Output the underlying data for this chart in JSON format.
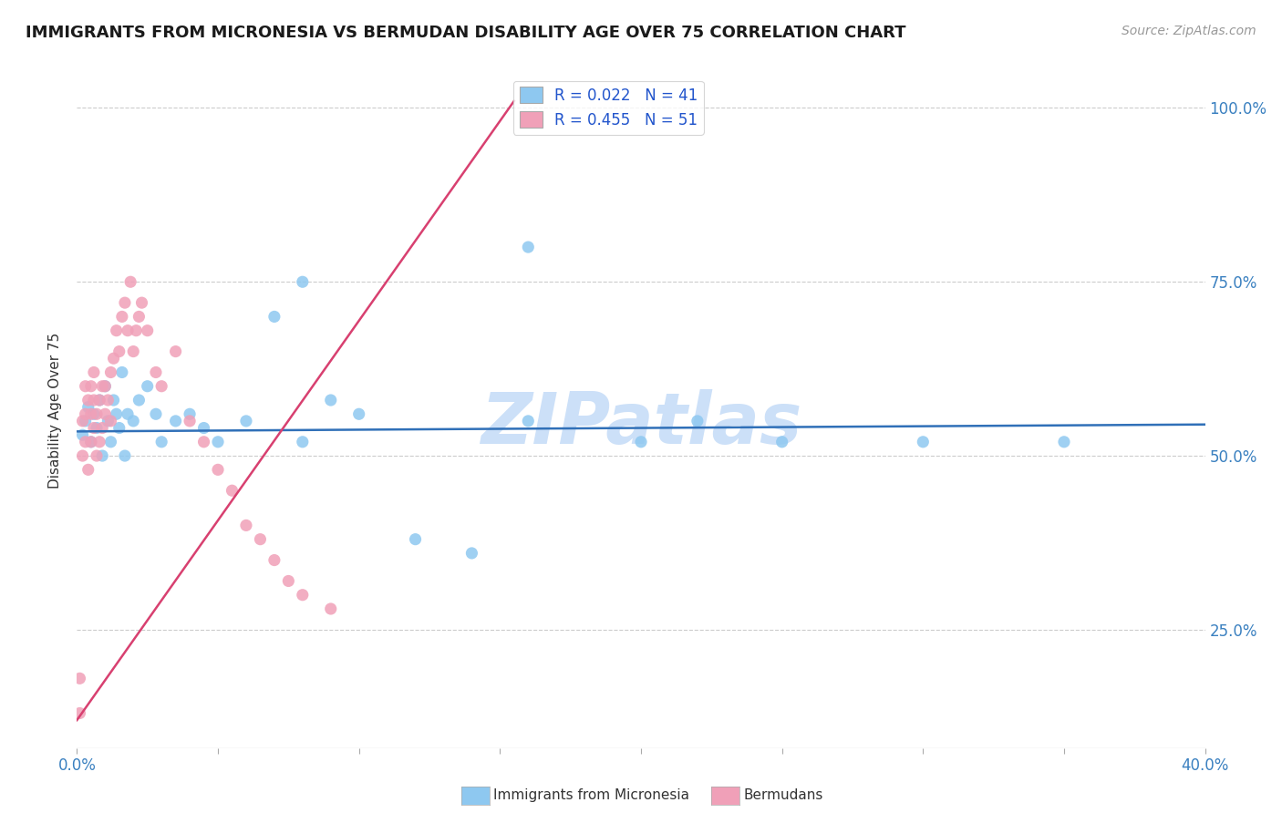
{
  "title": "IMMIGRANTS FROM MICRONESIA VS BERMUDAN DISABILITY AGE OVER 75 CORRELATION CHART",
  "source_text": "Source: ZipAtlas.com",
  "ylabel": "Disability Age Over 75",
  "xlim": [
    0.0,
    0.4
  ],
  "ylim": [
    0.08,
    1.05
  ],
  "xticks": [
    0.0,
    0.05,
    0.1,
    0.15,
    0.2,
    0.25,
    0.3,
    0.35,
    0.4
  ],
  "xticklabels": [
    "0.0%",
    "",
    "",
    "",
    "",
    "",
    "",
    "",
    "40.0%"
  ],
  "yticks": [
    0.25,
    0.5,
    0.75,
    1.0
  ],
  "yticklabels": [
    "25.0%",
    "50.0%",
    "75.0%",
    "100.0%"
  ],
  "blue_color": "#8ec8f0",
  "pink_color": "#f0a0b8",
  "blue_line_color": "#3070b8",
  "pink_line_color": "#d84070",
  "watermark": "ZIPatlas",
  "watermark_color": "#cce0f8",
  "blue_scatter_x": [
    0.002,
    0.003,
    0.004,
    0.005,
    0.006,
    0.007,
    0.008,
    0.009,
    0.01,
    0.011,
    0.012,
    0.013,
    0.014,
    0.015,
    0.016,
    0.017,
    0.018,
    0.02,
    0.022,
    0.025,
    0.028,
    0.03,
    0.035,
    0.04,
    0.045,
    0.05,
    0.06,
    0.07,
    0.08,
    0.09,
    0.1,
    0.12,
    0.14,
    0.16,
    0.2,
    0.22,
    0.25,
    0.3,
    0.35,
    0.16,
    0.08
  ],
  "blue_scatter_y": [
    0.53,
    0.55,
    0.57,
    0.52,
    0.56,
    0.54,
    0.58,
    0.5,
    0.6,
    0.55,
    0.52,
    0.58,
    0.56,
    0.54,
    0.62,
    0.5,
    0.56,
    0.55,
    0.58,
    0.6,
    0.56,
    0.52,
    0.55,
    0.56,
    0.54,
    0.52,
    0.55,
    0.7,
    0.75,
    0.58,
    0.56,
    0.38,
    0.36,
    0.55,
    0.52,
    0.55,
    0.52,
    0.52,
    0.52,
    0.8,
    0.52
  ],
  "pink_scatter_x": [
    0.001,
    0.001,
    0.002,
    0.002,
    0.003,
    0.003,
    0.003,
    0.004,
    0.004,
    0.005,
    0.005,
    0.005,
    0.006,
    0.006,
    0.006,
    0.007,
    0.007,
    0.008,
    0.008,
    0.009,
    0.009,
    0.01,
    0.01,
    0.011,
    0.012,
    0.012,
    0.013,
    0.014,
    0.015,
    0.016,
    0.017,
    0.018,
    0.019,
    0.02,
    0.021,
    0.022,
    0.023,
    0.025,
    0.028,
    0.03,
    0.035,
    0.04,
    0.045,
    0.05,
    0.055,
    0.06,
    0.065,
    0.07,
    0.075,
    0.08,
    0.09
  ],
  "pink_scatter_y": [
    0.13,
    0.18,
    0.5,
    0.55,
    0.52,
    0.56,
    0.6,
    0.48,
    0.58,
    0.52,
    0.56,
    0.6,
    0.54,
    0.58,
    0.62,
    0.5,
    0.56,
    0.52,
    0.58,
    0.54,
    0.6,
    0.56,
    0.6,
    0.58,
    0.55,
    0.62,
    0.64,
    0.68,
    0.65,
    0.7,
    0.72,
    0.68,
    0.75,
    0.65,
    0.68,
    0.7,
    0.72,
    0.68,
    0.62,
    0.6,
    0.65,
    0.55,
    0.52,
    0.48,
    0.45,
    0.4,
    0.38,
    0.35,
    0.32,
    0.3,
    0.28
  ],
  "blue_line_x0": 0.0,
  "blue_line_x1": 0.4,
  "blue_line_y0": 0.535,
  "blue_line_y1": 0.545,
  "pink_line_x0": 0.0,
  "pink_line_x1": 0.155,
  "pink_line_y0": 0.12,
  "pink_line_y1": 1.01
}
